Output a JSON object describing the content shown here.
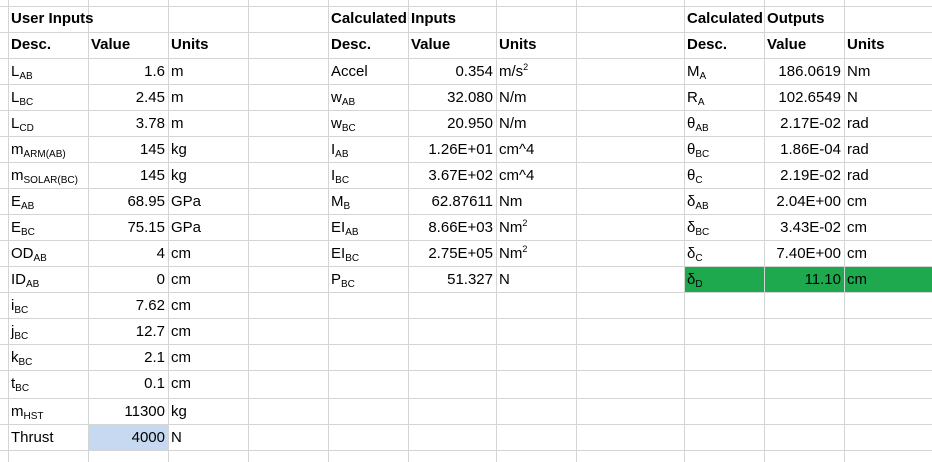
{
  "colors": {
    "input_highlight": "#c6d9f0",
    "output_highlight": "#1ea94f",
    "gridline": "#d4d4d4"
  },
  "sections": [
    {
      "title": "User Inputs",
      "headers": [
        "Desc.",
        "Value",
        "Units"
      ],
      "rows": [
        {
          "d": "L",
          "s": "AB",
          "v": "1.6",
          "u": "m"
        },
        {
          "d": "L",
          "s": "BC",
          "v": "2.45",
          "u": "m"
        },
        {
          "d": "L",
          "s": "CD",
          "v": "3.78",
          "u": "m"
        },
        {
          "d": "m",
          "s": "ARM(AB)",
          "v": "145",
          "u": "kg"
        },
        {
          "d": "m",
          "s": "SOLAR(BC)",
          "v": "145",
          "u": "kg"
        },
        {
          "d": "E",
          "s": "AB",
          "v": "68.95",
          "u": "GPa"
        },
        {
          "d": "E",
          "s": "BC",
          "v": "75.15",
          "u": "GPa"
        },
        {
          "d": "OD",
          "s": "AB",
          "v": "4",
          "u": "cm"
        },
        {
          "d": "ID",
          "s": "AB",
          "v": "0",
          "u": "cm"
        },
        {
          "d": "i",
          "s": "BC",
          "v": "7.62",
          "u": "cm"
        },
        {
          "d": "j",
          "s": "BC",
          "v": "12.7",
          "u": "cm"
        },
        {
          "d": "k",
          "s": "BC",
          "v": "2.1",
          "u": "cm"
        },
        {
          "d": "t",
          "s": "BC",
          "v": "0.1",
          "u": "cm"
        },
        {
          "d": "m",
          "s": "HST",
          "v": "11300",
          "u": "kg"
        },
        {
          "d": "Thrust",
          "s": "",
          "v": "4000",
          "u": "N"
        }
      ]
    },
    {
      "title": "Calculated Inputs",
      "headers": [
        "Desc.",
        "Value",
        "Units"
      ],
      "rows": [
        {
          "d": "Accel",
          "s": "",
          "v": "0.354",
          "u": "m/s",
          "us": "2"
        },
        {
          "d": "w",
          "s": "AB",
          "v": "32.080",
          "u": "N/m"
        },
        {
          "d": "w",
          "s": "BC",
          "v": "20.950",
          "u": "N/m"
        },
        {
          "d": "I",
          "s": "AB",
          "v": "1.26E+01",
          "u": "cm^4"
        },
        {
          "d": "I",
          "s": "BC",
          "v": "3.67E+02",
          "u": "cm^4"
        },
        {
          "d": "M",
          "s": "B",
          "v": "62.87611",
          "u": "Nm"
        },
        {
          "d": "EI",
          "s": "AB",
          "v": "8.66E+03",
          "u": "Nm",
          "us": "2"
        },
        {
          "d": "EI",
          "s": "BC",
          "v": "2.75E+05",
          "u": "Nm",
          "us": "2"
        },
        {
          "d": "P",
          "s": "BC",
          "v": "51.327",
          "u": "N"
        }
      ]
    },
    {
      "title": "Calculated Outputs",
      "headers": [
        "Desc.",
        "Value",
        "Units"
      ],
      "rows": [
        {
          "d": "M",
          "s": "A",
          "v": "186.0619",
          "u": "Nm"
        },
        {
          "d": "R",
          "s": "A",
          "v": "102.6549",
          "u": "N"
        },
        {
          "d": "θ",
          "s": "AB",
          "v": "2.17E-02",
          "u": "rad"
        },
        {
          "d": "θ",
          "s": "BC",
          "v": "1.86E-04",
          "u": "rad"
        },
        {
          "d": "θ",
          "s": "C",
          "v": "2.19E-02",
          "u": "rad"
        },
        {
          "d": "δ",
          "s": "AB",
          "v": "2.04E+00",
          "u": "cm"
        },
        {
          "d": "δ",
          "s": "BC",
          "v": "3.43E-02",
          "u": "cm"
        },
        {
          "d": "δ",
          "s": "C",
          "v": "7.40E+00",
          "u": "cm"
        },
        {
          "d": "δ",
          "s": "D",
          "v": "11.10",
          "u": "cm"
        }
      ]
    }
  ]
}
